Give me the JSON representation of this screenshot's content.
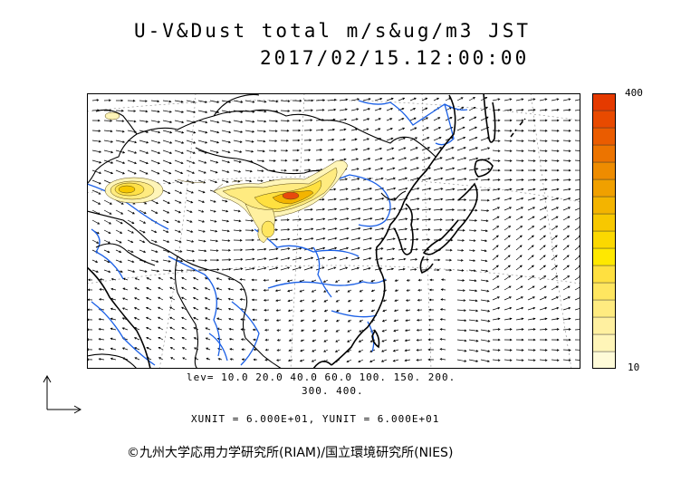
{
  "header": {
    "title": "U-V&Dust total m/s&ug/m3 JST",
    "timestamp": "2017/02/15.12:00:00"
  },
  "map": {
    "region": "East Asia",
    "layers": [
      "wind-vectors",
      "dust-concentration-contours",
      "coastlines",
      "rivers",
      "borders"
    ],
    "colors": {
      "land_lines": "#000000",
      "rivers": "#1a5fe6",
      "dust_low": "#fff5b8",
      "dust_mid": "#f2d640",
      "dust_high": "#e84a0c"
    }
  },
  "colorbar": {
    "max_label": "400",
    "min_label": "10",
    "colors": [
      "#fffbd8",
      "#fff5b8",
      "#fff0a0",
      "#ffeb80",
      "#ffe660",
      "#ffe040",
      "#ffe800",
      "#fbd800",
      "#f7c800",
      "#f3b400",
      "#f0a000",
      "#ee8c00",
      "#ec7400",
      "#ea5c00",
      "#e84a00",
      "#e53a00"
    ]
  },
  "levels": {
    "line1": "lev= 10.0 20.0 40.0 60.0 100. 150. 200.",
    "line2": "300. 400."
  },
  "units": {
    "text": "XUNIT = 6.000E+01, YUNIT = 6.000E+01"
  },
  "credit": {
    "text": "©九州大学応用力学研究所(RIAM)/国立環境研究所(NIES)"
  }
}
